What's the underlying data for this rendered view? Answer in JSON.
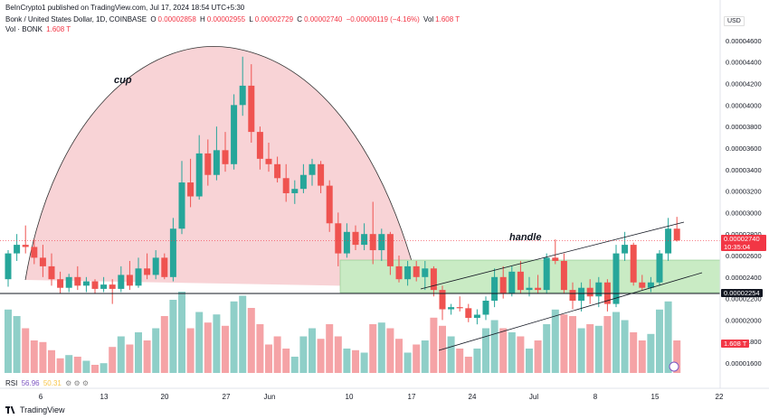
{
  "header": {
    "published": "BeInCrypto1 published on TradingView.com, Jul 17, 2024 18:54 UTC+5:30",
    "symbol": "Bonk / United States Dollar, 1D, COINBASE",
    "o_label": "O",
    "o_value": "0.00002858",
    "h_label": "H",
    "h_value": "0.00002955",
    "l_label": "L",
    "l_value": "0.00002729",
    "c_label": "C",
    "c_value": "0.00002740",
    "change": "−0.00000119 (−4.16%)",
    "vol_label": "Vol",
    "vol_value": "1.608 T",
    "vol_line_label": "Vol · BONK",
    "vol_line_value": "1.608 T"
  },
  "annotations": {
    "cup": "cup",
    "handle": "handle"
  },
  "price_axis": {
    "currency": "USD",
    "ticks": [
      "0.00004600",
      "0.00004400",
      "0.00004200",
      "0.00004000",
      "0.00003800",
      "0.00003600",
      "0.00003400",
      "0.00003200",
      "0.00003000",
      "0.00002800",
      "0.00002600",
      "0.00002400",
      "0.00002200",
      "0.00002000",
      "0.00001800",
      "0.00001600"
    ],
    "last_price": "0.00002740",
    "countdown": "10:35:04",
    "support_price": "0.00002254",
    "volume_tag": "1.608 T"
  },
  "time_axis": {
    "ticks": [
      "6",
      "13",
      "20",
      "27",
      "Jun",
      "10",
      "17",
      "24",
      "Jul",
      "8",
      "15",
      "22"
    ]
  },
  "rsi": {
    "label": "RSI",
    "value1": "56.96",
    "value2": "50.31"
  },
  "footer": {
    "brand": "TradingView"
  },
  "colors": {
    "up": "#26a69a",
    "down": "#ef5350",
    "up_vol": "#8fcfc8",
    "down_vol": "#f5a3a6",
    "cup_fill": "#f8d3d6",
    "zone_fill": "#c9ebc4"
  },
  "chart_data": {
    "type": "candlestick",
    "title": "Bonk / United States Dollar, 1D, COINBASE",
    "ylim": [
      1.55e-05,
      4.7e-05
    ],
    "candles": [
      {
        "o": 2.38e-05,
        "h": 2.65e-05,
        "l": 2.31e-05,
        "c": 2.62e-05
      },
      {
        "o": 2.62e-05,
        "h": 2.8e-05,
        "l": 2.55e-05,
        "c": 2.7e-05
      },
      {
        "o": 2.7e-05,
        "h": 2.88e-05,
        "l": 2.62e-05,
        "c": 2.68e-05
      },
      {
        "o": 2.68e-05,
        "h": 2.75e-05,
        "l": 2.52e-05,
        "c": 2.58e-05
      },
      {
        "o": 2.58e-05,
        "h": 2.7e-05,
        "l": 2.4e-05,
        "c": 2.5e-05
      },
      {
        "o": 2.5e-05,
        "h": 2.62e-05,
        "l": 2.32e-05,
        "c": 2.38e-05
      },
      {
        "o": 2.38e-05,
        "h": 2.45e-05,
        "l": 2.25e-05,
        "c": 2.3e-05
      },
      {
        "o": 2.3e-05,
        "h": 2.43e-05,
        "l": 2.26e-05,
        "c": 2.4e-05
      },
      {
        "o": 2.4e-05,
        "h": 2.5e-05,
        "l": 2.28e-05,
        "c": 2.32e-05
      },
      {
        "o": 2.32e-05,
        "h": 2.4e-05,
        "l": 2.26e-05,
        "c": 2.36e-05
      },
      {
        "o": 2.36e-05,
        "h": 2.38e-05,
        "l": 2.25e-05,
        "c": 2.29e-05
      },
      {
        "o": 2.29e-05,
        "h": 2.4e-05,
        "l": 2.26e-05,
        "c": 2.33e-05
      },
      {
        "o": 2.33e-05,
        "h": 2.38e-05,
        "l": 2.15e-05,
        "c": 2.29e-05
      },
      {
        "o": 2.29e-05,
        "h": 2.5e-05,
        "l": 2.26e-05,
        "c": 2.42e-05
      },
      {
        "o": 2.42e-05,
        "h": 2.55e-05,
        "l": 2.28e-05,
        "c": 2.32e-05
      },
      {
        "o": 2.32e-05,
        "h": 2.58e-05,
        "l": 2.3e-05,
        "c": 2.48e-05
      },
      {
        "o": 2.48e-05,
        "h": 2.62e-05,
        "l": 2.38e-05,
        "c": 2.42e-05
      },
      {
        "o": 2.42e-05,
        "h": 2.65e-05,
        "l": 2.38e-05,
        "c": 2.58e-05
      },
      {
        "o": 2.58e-05,
        "h": 2.62e-05,
        "l": 2.38e-05,
        "c": 2.4e-05
      },
      {
        "o": 2.4e-05,
        "h": 2.95e-05,
        "l": 2.36e-05,
        "c": 2.85e-05
      },
      {
        "o": 2.85e-05,
        "h": 3.48e-05,
        "l": 2.8e-05,
        "c": 3.28e-05
      },
      {
        "o": 3.28e-05,
        "h": 3.5e-05,
        "l": 3.05e-05,
        "c": 3.15e-05
      },
      {
        "o": 3.15e-05,
        "h": 3.72e-05,
        "l": 3.12e-05,
        "c": 3.55e-05
      },
      {
        "o": 3.55e-05,
        "h": 3.68e-05,
        "l": 3.25e-05,
        "c": 3.35e-05
      },
      {
        "o": 3.35e-05,
        "h": 3.8e-05,
        "l": 3.3e-05,
        "c": 3.58e-05
      },
      {
        "o": 3.58e-05,
        "h": 3.75e-05,
        "l": 3.38e-05,
        "c": 3.45e-05
      },
      {
        "o": 3.45e-05,
        "h": 4.1e-05,
        "l": 3.4e-05,
        "c": 4e-05
      },
      {
        "o": 4e-05,
        "h": 4.45e-05,
        "l": 3.9e-05,
        "c": 4.18e-05
      },
      {
        "o": 4.18e-05,
        "h": 4.38e-05,
        "l": 3.65e-05,
        "c": 3.75e-05
      },
      {
        "o": 3.75e-05,
        "h": 3.8e-05,
        "l": 3.4e-05,
        "c": 3.5e-05
      },
      {
        "o": 3.5e-05,
        "h": 3.65e-05,
        "l": 3.38e-05,
        "c": 3.45e-05
      },
      {
        "o": 3.45e-05,
        "h": 3.52e-05,
        "l": 3.28e-05,
        "c": 3.32e-05
      },
      {
        "o": 3.32e-05,
        "h": 3.45e-05,
        "l": 3.1e-05,
        "c": 3.18e-05
      },
      {
        "o": 3.18e-05,
        "h": 3.3e-05,
        "l": 3.08e-05,
        "c": 3.22e-05
      },
      {
        "o": 3.22e-05,
        "h": 3.45e-05,
        "l": 3.18e-05,
        "c": 3.35e-05
      },
      {
        "o": 3.35e-05,
        "h": 3.5e-05,
        "l": 3.25e-05,
        "c": 3.45e-05
      },
      {
        "o": 3.45e-05,
        "h": 3.48e-05,
        "l": 3.18e-05,
        "c": 3.25e-05
      },
      {
        "o": 3.25e-05,
        "h": 3.3e-05,
        "l": 2.82e-05,
        "c": 2.9e-05
      },
      {
        "o": 2.9e-05,
        "h": 3e-05,
        "l": 2.5e-05,
        "c": 2.62e-05
      },
      {
        "o": 2.62e-05,
        "h": 2.9e-05,
        "l": 2.58e-05,
        "c": 2.82e-05
      },
      {
        "o": 2.82e-05,
        "h": 2.88e-05,
        "l": 2.65e-05,
        "c": 2.7e-05
      },
      {
        "o": 2.7e-05,
        "h": 2.9e-05,
        "l": 2.65e-05,
        "c": 2.8e-05
      },
      {
        "o": 2.8e-05,
        "h": 3.1e-05,
        "l": 2.52e-05,
        "c": 2.65e-05
      },
      {
        "o": 2.65e-05,
        "h": 2.85e-05,
        "l": 2.55e-05,
        "c": 2.8e-05
      },
      {
        "o": 2.8e-05,
        "h": 2.82e-05,
        "l": 2.42e-05,
        "c": 2.5e-05
      },
      {
        "o": 2.5e-05,
        "h": 2.6e-05,
        "l": 2.35e-05,
        "c": 2.38e-05
      },
      {
        "o": 2.38e-05,
        "h": 2.55e-05,
        "l": 2.32e-05,
        "c": 2.5e-05
      },
      {
        "o": 2.5e-05,
        "h": 2.55e-05,
        "l": 2.36e-05,
        "c": 2.4e-05
      },
      {
        "o": 2.4e-05,
        "h": 2.55e-05,
        "l": 2.28e-05,
        "c": 2.48e-05
      },
      {
        "o": 2.48e-05,
        "h": 2.5e-05,
        "l": 2.22e-05,
        "c": 2.28e-05
      },
      {
        "o": 2.28e-05,
        "h": 2.32e-05,
        "l": 2e-05,
        "c": 2.1e-05
      },
      {
        "o": 2.1e-05,
        "h": 2.15e-05,
        "l": 2.05e-05,
        "c": 2.12e-05
      },
      {
        "o": 2.12e-05,
        "h": 2.22e-05,
        "l": 2.08e-05,
        "c": 2.11e-05
      },
      {
        "o": 2.11e-05,
        "h": 2.15e-05,
        "l": 1.98e-05,
        "c": 2.02e-05
      },
      {
        "o": 2.02e-05,
        "h": 2.1e-05,
        "l": 1.96e-05,
        "c": 2.05e-05
      },
      {
        "o": 2.05e-05,
        "h": 2.22e-05,
        "l": 2e-05,
        "c": 2.18e-05
      },
      {
        "o": 2.18e-05,
        "h": 2.48e-05,
        "l": 2.12e-05,
        "c": 2.4e-05
      },
      {
        "o": 2.4e-05,
        "h": 2.5e-05,
        "l": 2.2e-05,
        "c": 2.25e-05
      },
      {
        "o": 2.25e-05,
        "h": 2.5e-05,
        "l": 2.22e-05,
        "c": 2.45e-05
      },
      {
        "o": 2.45e-05,
        "h": 2.55e-05,
        "l": 2.25e-05,
        "c": 2.28e-05
      },
      {
        "o": 2.28e-05,
        "h": 2.4e-05,
        "l": 2.22e-05,
        "c": 2.3e-05
      },
      {
        "o": 2.3e-05,
        "h": 2.42e-05,
        "l": 2.25e-05,
        "c": 2.28e-05
      },
      {
        "o": 2.28e-05,
        "h": 2.62e-05,
        "l": 2.25e-05,
        "c": 2.58e-05
      },
      {
        "o": 2.58e-05,
        "h": 2.75e-05,
        "l": 2.52e-05,
        "c": 2.55e-05
      },
      {
        "o": 2.55e-05,
        "h": 2.62e-05,
        "l": 2.25e-05,
        "c": 2.28e-05
      },
      {
        "o": 2.28e-05,
        "h": 2.35e-05,
        "l": 2.1e-05,
        "c": 2.18e-05
      },
      {
        "o": 2.18e-05,
        "h": 2.35e-05,
        "l": 2.08e-05,
        "c": 2.3e-05
      },
      {
        "o": 2.3e-05,
        "h": 2.38e-05,
        "l": 2.15e-05,
        "c": 2.22e-05
      },
      {
        "o": 2.22e-05,
        "h": 2.4e-05,
        "l": 2.12e-05,
        "c": 2.35e-05
      },
      {
        "o": 2.35e-05,
        "h": 2.38e-05,
        "l": 2.08e-05,
        "c": 2.15e-05
      },
      {
        "o": 2.15e-05,
        "h": 2.7e-05,
        "l": 2.12e-05,
        "c": 2.62e-05
      },
      {
        "o": 2.62e-05,
        "h": 2.82e-05,
        "l": 2.55e-05,
        "c": 2.7e-05
      },
      {
        "o": 2.7e-05,
        "h": 2.72e-05,
        "l": 2.32e-05,
        "c": 2.35e-05
      },
      {
        "o": 2.35e-05,
        "h": 2.42e-05,
        "l": 2.28e-05,
        "c": 2.3e-05
      },
      {
        "o": 2.3e-05,
        "h": 2.4e-05,
        "l": 2.26e-05,
        "c": 2.35e-05
      },
      {
        "o": 2.35e-05,
        "h": 2.65e-05,
        "l": 2.32e-05,
        "c": 2.62e-05
      },
      {
        "o": 2.62e-05,
        "h": 2.95e-05,
        "l": 2.55e-05,
        "c": 2.85e-05
      },
      {
        "o": 2.85e-05,
        "h": 2.96e-05,
        "l": 2.73e-05,
        "c": 2.74e-05
      }
    ],
    "volume": [
      {
        "v": 0.78,
        "up": true
      },
      {
        "v": 0.7,
        "up": true
      },
      {
        "v": 0.55,
        "up": false
      },
      {
        "v": 0.4,
        "up": false
      },
      {
        "v": 0.38,
        "up": false
      },
      {
        "v": 0.28,
        "up": false
      },
      {
        "v": 0.18,
        "up": false
      },
      {
        "v": 0.22,
        "up": true
      },
      {
        "v": 0.2,
        "up": false
      },
      {
        "v": 0.15,
        "up": true
      },
      {
        "v": 0.1,
        "up": false
      },
      {
        "v": 0.12,
        "up": true
      },
      {
        "v": 0.32,
        "up": false
      },
      {
        "v": 0.45,
        "up": true
      },
      {
        "v": 0.35,
        "up": false
      },
      {
        "v": 0.5,
        "up": true
      },
      {
        "v": 0.4,
        "up": false
      },
      {
        "v": 0.55,
        "up": true
      },
      {
        "v": 0.7,
        "up": false
      },
      {
        "v": 0.9,
        "up": true
      },
      {
        "v": 1.0,
        "up": true
      },
      {
        "v": 0.55,
        "up": false
      },
      {
        "v": 0.75,
        "up": true
      },
      {
        "v": 0.62,
        "up": false
      },
      {
        "v": 0.72,
        "up": true
      },
      {
        "v": 0.58,
        "up": false
      },
      {
        "v": 0.88,
        "up": true
      },
      {
        "v": 0.95,
        "up": true
      },
      {
        "v": 0.8,
        "up": false
      },
      {
        "v": 0.6,
        "up": false
      },
      {
        "v": 0.35,
        "up": false
      },
      {
        "v": 0.45,
        "up": false
      },
      {
        "v": 0.3,
        "up": false
      },
      {
        "v": 0.2,
        "up": true
      },
      {
        "v": 0.45,
        "up": true
      },
      {
        "v": 0.55,
        "up": true
      },
      {
        "v": 0.42,
        "up": false
      },
      {
        "v": 0.6,
        "up": false
      },
      {
        "v": 0.45,
        "up": false
      },
      {
        "v": 0.3,
        "up": true
      },
      {
        "v": 0.28,
        "up": false
      },
      {
        "v": 0.25,
        "up": true
      },
      {
        "v": 0.6,
        "up": false
      },
      {
        "v": 0.62,
        "up": true
      },
      {
        "v": 0.55,
        "up": false
      },
      {
        "v": 0.42,
        "up": false
      },
      {
        "v": 0.25,
        "up": true
      },
      {
        "v": 0.35,
        "up": false
      },
      {
        "v": 0.4,
        "up": true
      },
      {
        "v": 0.68,
        "up": false
      },
      {
        "v": 0.58,
        "up": false
      },
      {
        "v": 0.45,
        "up": true
      },
      {
        "v": 0.3,
        "up": false
      },
      {
        "v": 0.2,
        "up": false
      },
      {
        "v": 0.3,
        "up": true
      },
      {
        "v": 0.55,
        "up": true
      },
      {
        "v": 0.65,
        "up": true
      },
      {
        "v": 0.55,
        "up": false
      },
      {
        "v": 0.5,
        "up": true
      },
      {
        "v": 0.45,
        "up": false
      },
      {
        "v": 0.3,
        "up": true
      },
      {
        "v": 0.4,
        "up": false
      },
      {
        "v": 0.6,
        "up": true
      },
      {
        "v": 0.78,
        "up": true
      },
      {
        "v": 0.72,
        "up": false
      },
      {
        "v": 0.7,
        "up": false
      },
      {
        "v": 0.55,
        "up": true
      },
      {
        "v": 0.6,
        "up": false
      },
      {
        "v": 0.58,
        "up": true
      },
      {
        "v": 0.7,
        "up": false
      },
      {
        "v": 0.75,
        "up": true
      },
      {
        "v": 0.65,
        "up": true
      },
      {
        "v": 0.5,
        "up": false
      },
      {
        "v": 0.4,
        "up": false
      },
      {
        "v": 0.48,
        "up": true
      },
      {
        "v": 0.78,
        "up": true
      },
      {
        "v": 0.88,
        "up": true
      },
      {
        "v": 0.4,
        "up": false
      }
    ]
  }
}
